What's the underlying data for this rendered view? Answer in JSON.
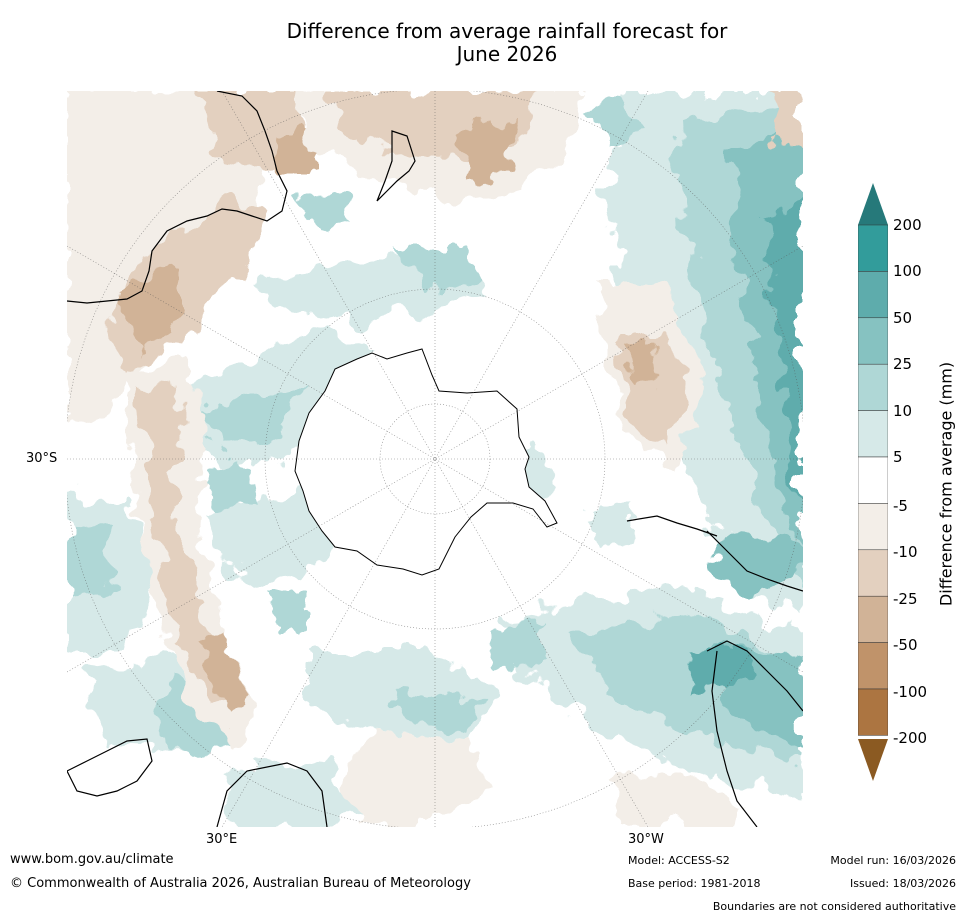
{
  "title": {
    "line1": "Difference from average rainfall forecast for",
    "line2": "June 2026"
  },
  "axes": {
    "lat_label": "30°S",
    "lon_label_left": "30°E",
    "lon_label_right": "30°W"
  },
  "colorbar": {
    "label": "Difference from average (mm)",
    "ticks": [
      "200",
      "100",
      "50",
      "25",
      "10",
      "5",
      "-5",
      "-10",
      "-25",
      "-50",
      "-100",
      "-200"
    ],
    "colors": {
      "top_arrow": "#26797a",
      "c_100_200": "#329c9b",
      "c_50_100": "#5eacac",
      "c_25_50": "#86c2c1",
      "c_10_25": "#afd7d6",
      "c_5_10": "#d6e9e8",
      "c_neutral": "#ffffff",
      "c_m5_m10": "#f3eee8",
      "c_m10_m25": "#e3d0bf",
      "c_m25_m50": "#d1b397",
      "c_m50_m100": "#c0936a",
      "c_m100_m200": "#ac7541",
      "bottom_arrow": "#8b5a22"
    }
  },
  "footer": {
    "website": "www.bom.gov.au/climate",
    "copyright": "© Commonwealth of Australia 2026, Australian Bureau of Meteorology",
    "model": "Model: ACCESS-S2",
    "base_period": "Base period: 1981-2018",
    "model_run": "Model run: 16/03/2026",
    "issued": "Issued: 18/03/2026",
    "disclaimer": "Boundaries are not considered authoritative"
  }
}
